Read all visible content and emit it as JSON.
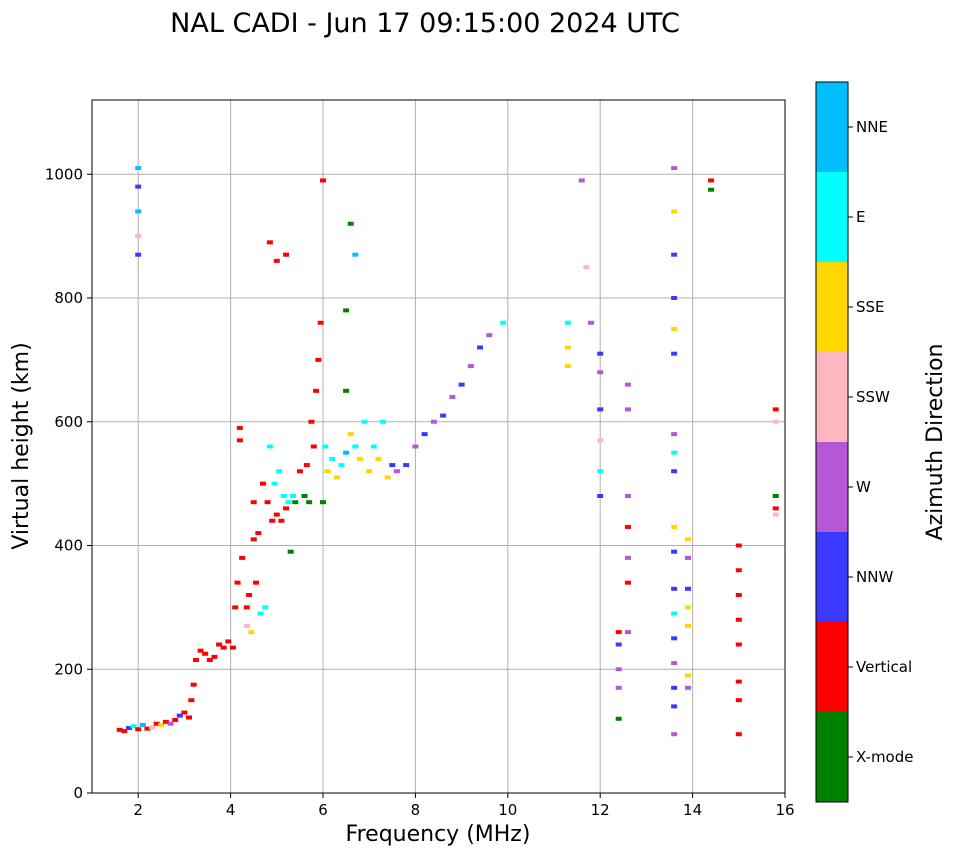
{
  "chart_data": {
    "type": "scatter",
    "title": "NAL CADI - Jun 17 09:15:00 2024 UTC",
    "xlabel": "Frequency (MHz)",
    "ylabel": "Virtual height (km)",
    "xlim": [
      1,
      16
    ],
    "ylim": [
      0,
      1120
    ],
    "xticks": [
      2,
      4,
      6,
      8,
      10,
      12,
      14,
      16
    ],
    "yticks": [
      0,
      200,
      400,
      600,
      800,
      1000
    ],
    "grid": true,
    "colorbar": {
      "label": "Azimuth Direction",
      "categories": [
        {
          "name": "X-mode",
          "color": "#008000"
        },
        {
          "name": "Vertical",
          "color": "#ff0000"
        },
        {
          "name": "NNW",
          "color": "#3a3aff"
        },
        {
          "name": "W",
          "color": "#b558d6"
        },
        {
          "name": "SSW",
          "color": "#ffb6c1"
        },
        {
          "name": "SSE",
          "color": "#ffd700"
        },
        {
          "name": "E",
          "color": "#00ffff"
        },
        {
          "name": "NNE",
          "color": "#00bfff"
        }
      ]
    },
    "points": [
      [
        1.6,
        102,
        "Vertical"
      ],
      [
        1.7,
        100,
        "Vertical"
      ],
      [
        1.8,
        105,
        "NNW"
      ],
      [
        1.9,
        108,
        "E"
      ],
      [
        2.0,
        103,
        "Vertical"
      ],
      [
        2.1,
        110,
        "NNE"
      ],
      [
        2.2,
        104,
        "Vertical"
      ],
      [
        2.3,
        106,
        "SSW"
      ],
      [
        2.4,
        112,
        "Vertical"
      ],
      [
        2.5,
        110,
        "SSE"
      ],
      [
        2.6,
        115,
        "Vertical"
      ],
      [
        2.7,
        112,
        "W"
      ],
      [
        2.8,
        118,
        "Vertical"
      ],
      [
        2.9,
        125,
        "NNW"
      ],
      [
        3.0,
        130,
        "Vertical"
      ],
      [
        3.1,
        122,
        "Vertical"
      ],
      [
        3.15,
        150,
        "Vertical"
      ],
      [
        3.2,
        175,
        "Vertical"
      ],
      [
        3.25,
        215,
        "Vertical"
      ],
      [
        3.35,
        230,
        "Vertical"
      ],
      [
        3.45,
        225,
        "Vertical"
      ],
      [
        3.55,
        215,
        "Vertical"
      ],
      [
        3.65,
        220,
        "Vertical"
      ],
      [
        3.75,
        240,
        "Vertical"
      ],
      [
        3.85,
        235,
        "Vertical"
      ],
      [
        3.95,
        245,
        "Vertical"
      ],
      [
        4.05,
        235,
        "Vertical"
      ],
      [
        4.1,
        300,
        "Vertical"
      ],
      [
        4.15,
        340,
        "Vertical"
      ],
      [
        4.25,
        380,
        "Vertical"
      ],
      [
        4.2,
        570,
        "Vertical"
      ],
      [
        4.2,
        590,
        "Vertical"
      ],
      [
        4.35,
        300,
        "Vertical"
      ],
      [
        4.35,
        270,
        "SSW"
      ],
      [
        4.4,
        320,
        "Vertical"
      ],
      [
        4.45,
        260,
        "SSE"
      ],
      [
        4.5,
        410,
        "Vertical"
      ],
      [
        4.5,
        470,
        "Vertical"
      ],
      [
        4.55,
        340,
        "Vertical"
      ],
      [
        4.6,
        420,
        "Vertical"
      ],
      [
        4.65,
        290,
        "E"
      ],
      [
        4.7,
        500,
        "Vertical"
      ],
      [
        4.75,
        300,
        "E"
      ],
      [
        4.8,
        470,
        "Vertical"
      ],
      [
        4.85,
        560,
        "E"
      ],
      [
        4.9,
        440,
        "Vertical"
      ],
      [
        4.95,
        500,
        "E"
      ],
      [
        5.0,
        450,
        "Vertical"
      ],
      [
        5.05,
        520,
        "E"
      ],
      [
        5.1,
        440,
        "Vertical"
      ],
      [
        5.15,
        480,
        "E"
      ],
      [
        5.2,
        460,
        "Vertical"
      ],
      [
        5.25,
        470,
        "E"
      ],
      [
        5.3,
        390,
        "X-mode"
      ],
      [
        5.35,
        480,
        "E"
      ],
      [
        5.4,
        470,
        "X-mode"
      ],
      [
        5.5,
        520,
        "Vertical"
      ],
      [
        5.6,
        480,
        "X-mode"
      ],
      [
        5.65,
        530,
        "Vertical"
      ],
      [
        5.7,
        470,
        "X-mode"
      ],
      [
        5.75,
        600,
        "Vertical"
      ],
      [
        5.8,
        560,
        "Vertical"
      ],
      [
        5.85,
        650,
        "Vertical"
      ],
      [
        5.9,
        700,
        "Vertical"
      ],
      [
        5.95,
        760,
        "Vertical"
      ],
      [
        6.0,
        470,
        "X-mode"
      ],
      [
        6.05,
        560,
        "E"
      ],
      [
        6.1,
        520,
        "SSE"
      ],
      [
        6.2,
        540,
        "E"
      ],
      [
        6.3,
        510,
        "SSE"
      ],
      [
        6.4,
        530,
        "E"
      ],
      [
        6.5,
        550,
        "NNE"
      ],
      [
        6.6,
        580,
        "SSE"
      ],
      [
        6.7,
        560,
        "E"
      ],
      [
        6.8,
        540,
        "SSE"
      ],
      [
        6.9,
        600,
        "E"
      ],
      [
        7.0,
        520,
        "SSE"
      ],
      [
        7.1,
        560,
        "E"
      ],
      [
        7.2,
        540,
        "SSE"
      ],
      [
        7.3,
        600,
        "E"
      ],
      [
        7.4,
        510,
        "SSE"
      ],
      [
        7.5,
        530,
        "NNW"
      ],
      [
        7.6,
        520,
        "W"
      ],
      [
        7.8,
        530,
        "NNW"
      ],
      [
        8.0,
        560,
        "W"
      ],
      [
        8.2,
        580,
        "NNW"
      ],
      [
        8.4,
        600,
        "W"
      ],
      [
        8.6,
        610,
        "NNW"
      ],
      [
        8.8,
        640,
        "W"
      ],
      [
        9.0,
        660,
        "NNW"
      ],
      [
        9.2,
        690,
        "W"
      ],
      [
        9.4,
        720,
        "NNW"
      ],
      [
        9.6,
        740,
        "W"
      ],
      [
        9.9,
        760,
        "E"
      ],
      [
        4.85,
        890,
        "Vertical"
      ],
      [
        5.0,
        860,
        "Vertical"
      ],
      [
        5.2,
        870,
        "Vertical"
      ],
      [
        6.0,
        990,
        "Vertical"
      ],
      [
        6.6,
        920,
        "X-mode"
      ],
      [
        6.7,
        870,
        "NNE"
      ],
      [
        6.5,
        780,
        "X-mode"
      ],
      [
        6.5,
        650,
        "X-mode"
      ],
      [
        2.0,
        1010,
        "NNE"
      ],
      [
        2.0,
        980,
        "NNW"
      ],
      [
        2.0,
        940,
        "NNE"
      ],
      [
        2.0,
        900,
        "SSW"
      ],
      [
        2.0,
        870,
        "NNW"
      ],
      [
        11.3,
        760,
        "E"
      ],
      [
        11.3,
        720,
        "SSE"
      ],
      [
        11.3,
        690,
        "SSE"
      ],
      [
        11.6,
        990,
        "W"
      ],
      [
        11.7,
        850,
        "SSW"
      ],
      [
        11.8,
        760,
        "W"
      ],
      [
        12.0,
        480,
        "NNW"
      ],
      [
        12.0,
        520,
        "E"
      ],
      [
        12.0,
        570,
        "SSW"
      ],
      [
        12.0,
        620,
        "NNW"
      ],
      [
        12.0,
        680,
        "W"
      ],
      [
        12.0,
        710,
        "NNW"
      ],
      [
        12.4,
        260,
        "Vertical"
      ],
      [
        12.4,
        240,
        "NNW"
      ],
      [
        12.4,
        200,
        "W"
      ],
      [
        12.4,
        170,
        "W"
      ],
      [
        12.4,
        120,
        "X-mode"
      ],
      [
        12.6,
        660,
        "W"
      ],
      [
        12.6,
        620,
        "W"
      ],
      [
        12.6,
        480,
        "W"
      ],
      [
        12.6,
        430,
        "Vertical"
      ],
      [
        12.6,
        380,
        "W"
      ],
      [
        12.6,
        340,
        "Vertical"
      ],
      [
        12.6,
        260,
        "W"
      ],
      [
        13.6,
        1010,
        "W"
      ],
      [
        13.6,
        940,
        "SSE"
      ],
      [
        13.6,
        870,
        "NNW"
      ],
      [
        13.6,
        800,
        "NNW"
      ],
      [
        13.6,
        750,
        "SSE"
      ],
      [
        13.6,
        710,
        "NNW"
      ],
      [
        13.6,
        580,
        "W"
      ],
      [
        13.6,
        550,
        "E"
      ],
      [
        13.6,
        520,
        "NNW"
      ],
      [
        13.6,
        430,
        "SSE"
      ],
      [
        13.6,
        390,
        "NNW"
      ],
      [
        13.6,
        330,
        "NNW"
      ],
      [
        13.6,
        290,
        "E"
      ],
      [
        13.6,
        250,
        "NNW"
      ],
      [
        13.6,
        210,
        "W"
      ],
      [
        13.6,
        170,
        "NNW"
      ],
      [
        13.6,
        140,
        "NNW"
      ],
      [
        13.6,
        95,
        "W"
      ],
      [
        13.9,
        410,
        "SSE"
      ],
      [
        13.9,
        380,
        "W"
      ],
      [
        13.9,
        330,
        "NNW"
      ],
      [
        13.9,
        300,
        "SSE"
      ],
      [
        13.9,
        270,
        "SSE"
      ],
      [
        13.9,
        190,
        "SSE"
      ],
      [
        13.9,
        170,
        "W"
      ],
      [
        14.4,
        990,
        "Vertical"
      ],
      [
        14.4,
        975,
        "X-mode"
      ],
      [
        15.0,
        400,
        "Vertical"
      ],
      [
        15.0,
        360,
        "Vertical"
      ],
      [
        15.0,
        320,
        "Vertical"
      ],
      [
        15.0,
        280,
        "Vertical"
      ],
      [
        15.0,
        240,
        "Vertical"
      ],
      [
        15.0,
        180,
        "Vertical"
      ],
      [
        15.0,
        150,
        "Vertical"
      ],
      [
        15.0,
        95,
        "Vertical"
      ],
      [
        15.8,
        620,
        "Vertical"
      ],
      [
        15.8,
        600,
        "SSW"
      ],
      [
        15.8,
        480,
        "X-mode"
      ],
      [
        15.8,
        460,
        "Vertical"
      ],
      [
        15.8,
        450,
        "SSW"
      ]
    ]
  }
}
